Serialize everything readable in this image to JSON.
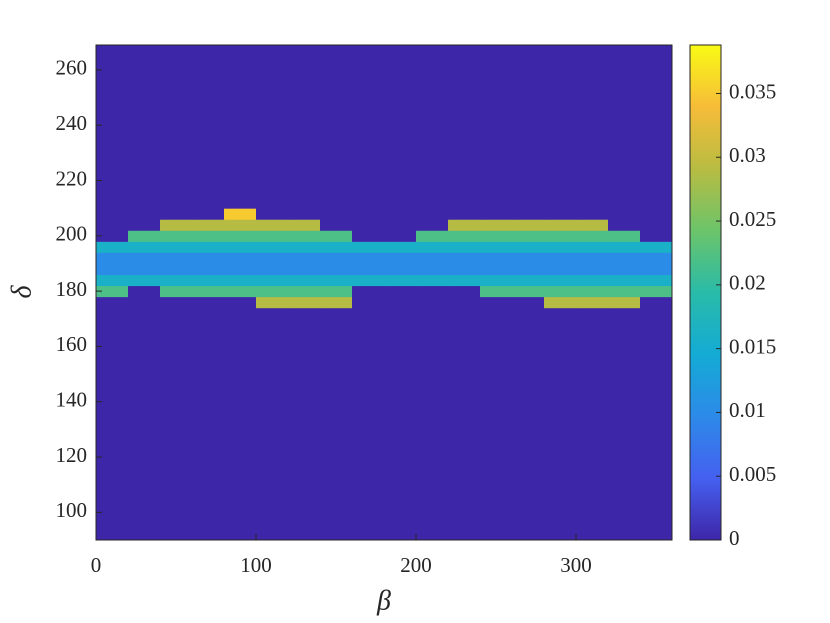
{
  "chart_data": {
    "type": "heatmap",
    "xlabel": "β",
    "ylabel": "δ",
    "x_edges": [
      0,
      20,
      40,
      60,
      80,
      100,
      120,
      140,
      160,
      180,
      200,
      220,
      240,
      260,
      280,
      300,
      320,
      340,
      360
    ],
    "y_edges": [
      90,
      170,
      174,
      178,
      182,
      186,
      190,
      194,
      198,
      202,
      206,
      210,
      270
    ],
    "z": [
      [
        0,
        0,
        0,
        0,
        0,
        0,
        0,
        0,
        0,
        0,
        0,
        0,
        0,
        0,
        0,
        0,
        0,
        0
      ],
      [
        0,
        0,
        0,
        0,
        0,
        0,
        0,
        0,
        0,
        0,
        0,
        0,
        0,
        0,
        0,
        0,
        0,
        0
      ],
      [
        0,
        0,
        0,
        0,
        0,
        0.029,
        0.029,
        0.029,
        0,
        0,
        0,
        0,
        0,
        0,
        0.029,
        0.029,
        0.029,
        0
      ],
      [
        0.022,
        0,
        0.022,
        0.022,
        0.022,
        0.022,
        0.022,
        0.022,
        0,
        0,
        0,
        0,
        0.022,
        0.022,
        0.022,
        0.022,
        0.022,
        0.022
      ],
      [
        0.016,
        0.016,
        0.016,
        0.016,
        0.016,
        0.016,
        0.016,
        0.016,
        0.016,
        0.016,
        0.016,
        0.016,
        0.016,
        0.016,
        0.016,
        0.016,
        0.016,
        0.016
      ],
      [
        0.01,
        0.01,
        0.01,
        0.01,
        0.01,
        0.01,
        0.01,
        0.01,
        0.01,
        0.01,
        0.01,
        0.01,
        0.01,
        0.01,
        0.01,
        0.01,
        0.01,
        0.01
      ],
      [
        0.01,
        0.01,
        0.01,
        0.01,
        0.01,
        0.01,
        0.01,
        0.01,
        0.01,
        0.01,
        0.01,
        0.01,
        0.01,
        0.01,
        0.01,
        0.01,
        0.01,
        0.01
      ],
      [
        0.016,
        0.016,
        0.016,
        0.016,
        0.016,
        0.016,
        0.016,
        0.016,
        0.016,
        0.016,
        0.016,
        0.016,
        0.016,
        0.016,
        0.016,
        0.016,
        0.016,
        0.016
      ],
      [
        0,
        0.022,
        0.022,
        0.022,
        0.022,
        0.022,
        0.022,
        0.022,
        0,
        0,
        0.022,
        0.022,
        0.022,
        0.022,
        0.022,
        0.022,
        0.022,
        0
      ],
      [
        0,
        0,
        0.029,
        0.029,
        0.029,
        0.029,
        0.029,
        0,
        0,
        0,
        0,
        0.029,
        0.029,
        0.029,
        0.029,
        0.029,
        0,
        0
      ],
      [
        0,
        0,
        0,
        0,
        0.035,
        0,
        0,
        0,
        0,
        0,
        0,
        0,
        0,
        0,
        0,
        0,
        0,
        0
      ],
      [
        0,
        0,
        0,
        0,
        0,
        0,
        0,
        0,
        0,
        0,
        0,
        0,
        0,
        0,
        0,
        0,
        0,
        0
      ]
    ],
    "xlim": [
      0,
      360
    ],
    "xticks": [
      0,
      100,
      200,
      300
    ],
    "ylim": [
      90,
      269
    ],
    "yticks": [
      100,
      120,
      140,
      160,
      180,
      200,
      220,
      240,
      260
    ],
    "clim": [
      0,
      0.0388
    ],
    "cticks": [
      0,
      0.005,
      0.01,
      0.015,
      0.02,
      0.025,
      0.03,
      0.035
    ],
    "colormap": [
      "#3e26a8",
      "#4560f0",
      "#2c8ae8",
      "#14abd5",
      "#29bba8",
      "#6cc46a",
      "#b8bc42",
      "#f6bc38",
      "#f9fb15"
    ]
  }
}
